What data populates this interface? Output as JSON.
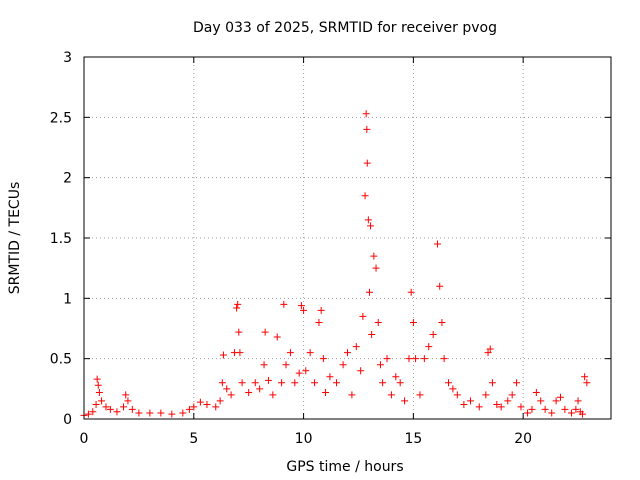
{
  "chart_data": {
    "type": "scatter",
    "title": "Day 033 of 2025, SRMTID for receiver pvog",
    "xlabel": "GPS time / hours",
    "ylabel": "SRMTID / TECUs",
    "xlim": [
      0,
      24
    ],
    "ylim": [
      0,
      3
    ],
    "xticks": [
      0,
      5,
      10,
      15,
      20
    ],
    "xtick_labels": [
      "0",
      "5",
      "10",
      "15",
      "20"
    ],
    "yticks": [
      0,
      0.5,
      1,
      1.5,
      2,
      2.5,
      3
    ],
    "ytick_labels": [
      "0",
      "0.5",
      "1",
      "1.5",
      "2",
      "2.5",
      "3"
    ],
    "grid": true,
    "marker": "+",
    "color": "#ff0000",
    "series": [
      {
        "name": "SRMTID",
        "points": [
          [
            0.0,
            0.03
          ],
          [
            0.2,
            0.04
          ],
          [
            0.4,
            0.06
          ],
          [
            0.55,
            0.12
          ],
          [
            0.6,
            0.33
          ],
          [
            0.65,
            0.28
          ],
          [
            0.7,
            0.22
          ],
          [
            0.8,
            0.15
          ],
          [
            1.0,
            0.1
          ],
          [
            1.2,
            0.08
          ],
          [
            1.5,
            0.06
          ],
          [
            1.8,
            0.1
          ],
          [
            1.9,
            0.2
          ],
          [
            2.0,
            0.15
          ],
          [
            2.2,
            0.08
          ],
          [
            2.5,
            0.05
          ],
          [
            3.0,
            0.05
          ],
          [
            3.5,
            0.05
          ],
          [
            4.0,
            0.04
          ],
          [
            4.5,
            0.05
          ],
          [
            4.8,
            0.08
          ],
          [
            5.0,
            0.1
          ],
          [
            5.3,
            0.14
          ],
          [
            5.6,
            0.12
          ],
          [
            6.0,
            0.1
          ],
          [
            6.2,
            0.15
          ],
          [
            6.3,
            0.3
          ],
          [
            6.35,
            0.53
          ],
          [
            6.5,
            0.25
          ],
          [
            6.7,
            0.2
          ],
          [
            6.85,
            0.55
          ],
          [
            6.95,
            0.92
          ],
          [
            7.0,
            0.95
          ],
          [
            7.05,
            0.72
          ],
          [
            7.1,
            0.55
          ],
          [
            7.2,
            0.3
          ],
          [
            7.5,
            0.22
          ],
          [
            7.8,
            0.3
          ],
          [
            8.0,
            0.25
          ],
          [
            8.2,
            0.45
          ],
          [
            8.25,
            0.72
          ],
          [
            8.4,
            0.32
          ],
          [
            8.6,
            0.2
          ],
          [
            8.8,
            0.68
          ],
          [
            9.0,
            0.3
          ],
          [
            9.1,
            0.95
          ],
          [
            9.2,
            0.45
          ],
          [
            9.4,
            0.55
          ],
          [
            9.6,
            0.3
          ],
          [
            9.8,
            0.38
          ],
          [
            9.9,
            0.94
          ],
          [
            10.0,
            0.9
          ],
          [
            10.1,
            0.4
          ],
          [
            10.3,
            0.55
          ],
          [
            10.5,
            0.3
          ],
          [
            10.7,
            0.8
          ],
          [
            10.8,
            0.9
          ],
          [
            10.9,
            0.5
          ],
          [
            11.0,
            0.22
          ],
          [
            11.2,
            0.35
          ],
          [
            11.5,
            0.3
          ],
          [
            11.8,
            0.45
          ],
          [
            12.0,
            0.55
          ],
          [
            12.2,
            0.2
          ],
          [
            12.4,
            0.6
          ],
          [
            12.6,
            0.4
          ],
          [
            12.7,
            0.85
          ],
          [
            12.8,
            1.85
          ],
          [
            12.85,
            2.53
          ],
          [
            12.88,
            2.4
          ],
          [
            12.9,
            2.12
          ],
          [
            12.95,
            1.65
          ],
          [
            13.0,
            1.05
          ],
          [
            13.05,
            1.6
          ],
          [
            13.1,
            0.7
          ],
          [
            13.2,
            1.35
          ],
          [
            13.3,
            1.25
          ],
          [
            13.4,
            0.8
          ],
          [
            13.5,
            0.45
          ],
          [
            13.6,
            0.3
          ],
          [
            13.8,
            0.5
          ],
          [
            14.0,
            0.2
          ],
          [
            14.2,
            0.35
          ],
          [
            14.4,
            0.3
          ],
          [
            14.6,
            0.15
          ],
          [
            14.8,
            0.5
          ],
          [
            14.9,
            1.05
          ],
          [
            15.0,
            0.8
          ],
          [
            15.1,
            0.5
          ],
          [
            15.3,
            0.2
          ],
          [
            15.5,
            0.5
          ],
          [
            15.7,
            0.6
          ],
          [
            15.9,
            0.7
          ],
          [
            16.1,
            1.45
          ],
          [
            16.2,
            1.1
          ],
          [
            16.3,
            0.8
          ],
          [
            16.4,
            0.5
          ],
          [
            16.6,
            0.3
          ],
          [
            16.8,
            0.25
          ],
          [
            17.0,
            0.2
          ],
          [
            17.3,
            0.12
          ],
          [
            17.6,
            0.15
          ],
          [
            18.0,
            0.1
          ],
          [
            18.3,
            0.2
          ],
          [
            18.4,
            0.55
          ],
          [
            18.5,
            0.58
          ],
          [
            18.6,
            0.3
          ],
          [
            18.8,
            0.12
          ],
          [
            19.0,
            0.1
          ],
          [
            19.3,
            0.15
          ],
          [
            19.5,
            0.2
          ],
          [
            19.7,
            0.3
          ],
          [
            19.9,
            0.1
          ],
          [
            20.2,
            0.05
          ],
          [
            20.4,
            0.08
          ],
          [
            20.6,
            0.22
          ],
          [
            20.8,
            0.15
          ],
          [
            21.0,
            0.08
          ],
          [
            21.3,
            0.05
          ],
          [
            21.5,
            0.15
          ],
          [
            21.7,
            0.18
          ],
          [
            21.9,
            0.08
          ],
          [
            22.2,
            0.05
          ],
          [
            22.4,
            0.08
          ],
          [
            22.5,
            0.15
          ],
          [
            22.6,
            0.06
          ],
          [
            22.7,
            0.04
          ],
          [
            22.8,
            0.35
          ],
          [
            22.9,
            0.3
          ]
        ]
      }
    ]
  }
}
